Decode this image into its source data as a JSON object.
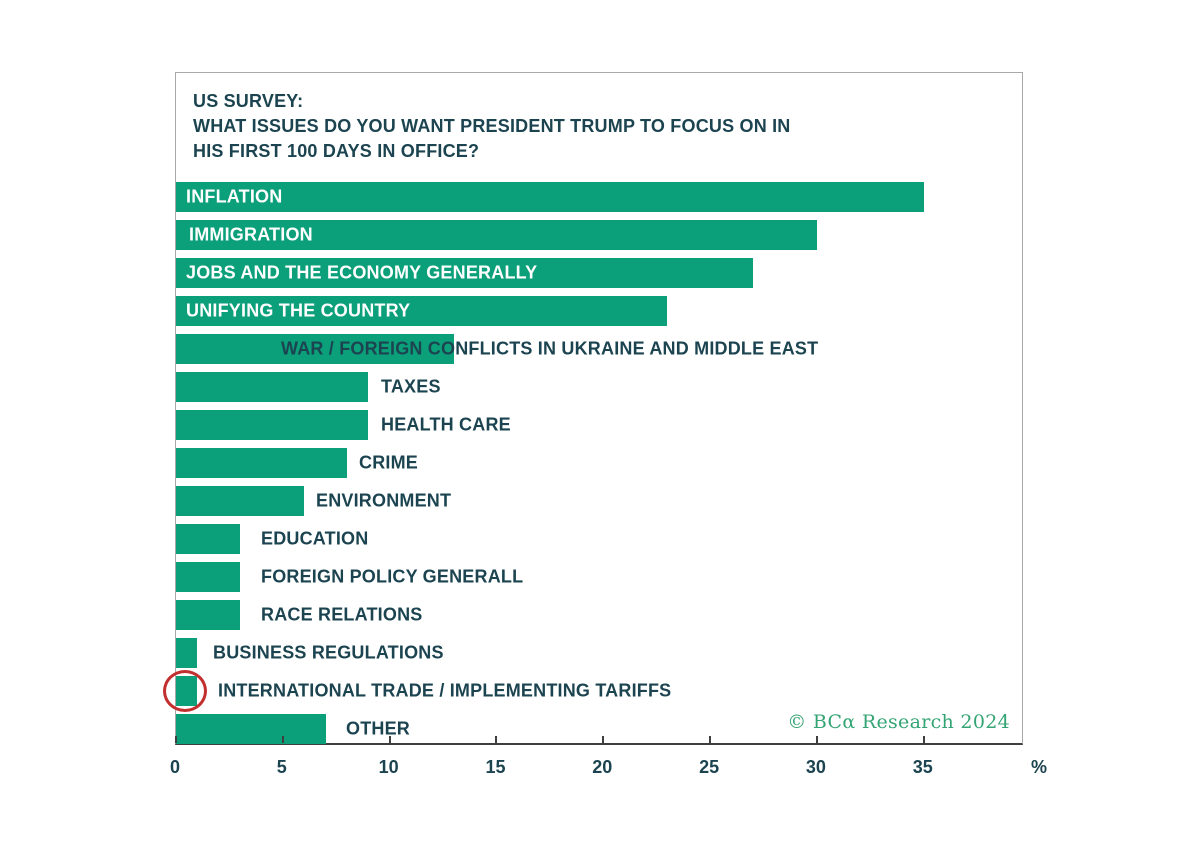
{
  "chart": {
    "title_lines": [
      "US SURVEY:",
      "WHAT ISSUES DO YOU WANT PRESIDENT TRUMP TO FOCUS ON IN",
      "HIS FIRST 100 DAYS IN OFFICE?"
    ],
    "copyright": "© BCα Research 2024"
  },
  "chart_data": {
    "type": "bar",
    "orientation": "horizontal",
    "title": "US SURVEY: WHAT ISSUES DO YOU WANT PRESIDENT TRUMP TO FOCUS ON IN HIS FIRST 100 DAYS IN OFFICE?",
    "categories": [
      "INFLATION",
      "IMMIGRATION",
      "JOBS AND THE ECONOMY GENERALLY",
      "UNIFYING THE COUNTRY",
      "WAR / FOREIGN CONFLICTS IN UKRAINE AND MIDDLE EAST",
      "TAXES",
      "HEALTH CARE",
      "CRIME",
      "ENVIRONMENT",
      "EDUCATION",
      "FOREIGN POLICY GENERALL",
      "RACE RELATIONS",
      "BUSINESS REGULATIONS",
      "INTERNATIONAL TRADE / IMPLEMENTING TARIFFS",
      "OTHER"
    ],
    "values": [
      35,
      30,
      27,
      23,
      13,
      9,
      9,
      8,
      6,
      3,
      3,
      3,
      1,
      1,
      7
    ],
    "x_ticks": [
      0,
      5,
      10,
      15,
      20,
      25,
      30,
      35
    ],
    "x_unit": "%",
    "xlim": [
      0,
      39.6
    ],
    "grid": false,
    "legend": "none",
    "bar_color": "#0b9f7a",
    "label_color_inside": "#ffffff",
    "label_color_outside": "#1c4450",
    "label_placement": [
      {
        "mode": "inside",
        "x": 10
      },
      {
        "mode": "inside",
        "x": 13
      },
      {
        "mode": "inside",
        "x": 10
      },
      {
        "mode": "inside",
        "x": 10
      },
      {
        "mode": "outside",
        "x": 105
      },
      {
        "mode": "outside",
        "x": 205
      },
      {
        "mode": "outside",
        "x": 205
      },
      {
        "mode": "outside",
        "x": 183
      },
      {
        "mode": "outside",
        "x": 140
      },
      {
        "mode": "outside",
        "x": 85
      },
      {
        "mode": "outside",
        "x": 85
      },
      {
        "mode": "outside",
        "x": 85
      },
      {
        "mode": "outside",
        "x": 37
      },
      {
        "mode": "outside",
        "x": 42
      },
      {
        "mode": "outside",
        "x": 170
      }
    ],
    "annotations": [
      {
        "type": "circle",
        "target_category": "INTERNATIONAL TRADE / IMPLEMENTING TARIFFS",
        "color": "#c22f2f"
      }
    ]
  }
}
